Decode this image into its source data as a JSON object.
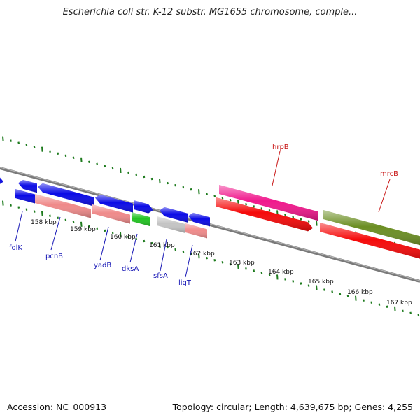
{
  "title": "Escherichia coli str. K-12 substr. MG1655 chromosome, comple...",
  "footer": {
    "accession": "Accession: NC_000913",
    "summary": "Topology: circular; Length: 4,639,675 bp; Genes: 4,255"
  },
  "colors": {
    "blue_gene": "#0a0ae6",
    "salmon_gene": "#ef8a8a",
    "green_gene": "#22c322",
    "grey_gene": "#c4c4c4",
    "red_gene": "#f50a0a",
    "pink_gene": "#f0188c",
    "olive_gene": "#6b8e23",
    "backbone": "#7a7a7a",
    "tick": "#1e7b1e",
    "label_blue": "#1515b5",
    "label_red": "#c81414"
  },
  "kbp_labels": [
    "158 kbp",
    "159 kbp",
    "160 kbp",
    "161 kbp",
    "162 kbp",
    "163 kbp",
    "164 kbp",
    "165 kbp",
    "166 kbp",
    "167 kbp"
  ],
  "gene_labels": [
    {
      "name": "folK",
      "color": "label_blue"
    },
    {
      "name": "pcnB",
      "color": "label_blue"
    },
    {
      "name": "yadB",
      "color": "label_blue"
    },
    {
      "name": "dksA",
      "color": "label_blue"
    },
    {
      "name": "sfsA",
      "color": "label_blue"
    },
    {
      "name": "ligT",
      "color": "label_blue"
    },
    {
      "name": "hrpB",
      "color": "label_red"
    },
    {
      "name": "mrcB",
      "color": "label_red"
    }
  ]
}
